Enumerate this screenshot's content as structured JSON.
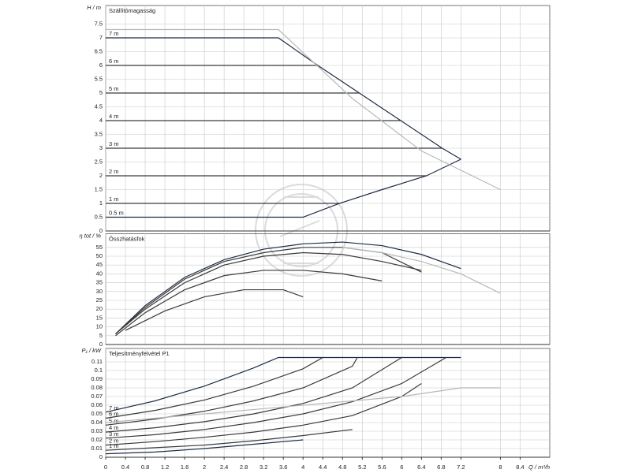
{
  "chart_data": [
    {
      "type": "line",
      "ylabel": "H / m",
      "title": "Szállítómagasság",
      "xlim": [
        0,
        9
      ],
      "ylim": [
        0,
        8
      ],
      "yticks": [
        0,
        0.5,
        1,
        1.5,
        2,
        2.5,
        3,
        3.5,
        4,
        4.5,
        5,
        5.5,
        6,
        6.5,
        7,
        7.5
      ],
      "grid": true,
      "series": [
        {
          "name": "7 m",
          "color": "#1c2b45",
          "x": [
            0,
            3.5,
            4.3,
            5.14,
            5.98,
            6.82,
            7.2
          ],
          "values": [
            7,
            7,
            6,
            5,
            4,
            3,
            2.6
          ]
        },
        {
          "name": "6 m",
          "color": "#3a3a3a",
          "x": [
            0,
            4.3
          ],
          "values": [
            6,
            6
          ]
        },
        {
          "name": "5 m",
          "color": "#3a3a3a",
          "x": [
            0,
            5.14
          ],
          "values": [
            5,
            5
          ]
        },
        {
          "name": "4 m",
          "color": "#3a3a3a",
          "x": [
            0,
            5.98
          ],
          "values": [
            4,
            4
          ]
        },
        {
          "name": "3 m",
          "color": "#3a3a3a",
          "x": [
            0,
            6.82
          ],
          "values": [
            3,
            3
          ]
        },
        {
          "name": "2 m",
          "color": "#3a3a3a",
          "x": [
            0,
            6.5
          ],
          "values": [
            2,
            2
          ]
        },
        {
          "name": "1 m",
          "color": "#3a3a3a",
          "x": [
            0,
            4.74
          ],
          "values": [
            1,
            1
          ]
        },
        {
          "name": "0.5 m",
          "color": "#1c2b45",
          "x": [
            0,
            4,
            4.74,
            5.6,
            6.5,
            7.2
          ],
          "values": [
            0.5,
            0.5,
            1,
            1.5,
            2,
            2.6
          ]
        },
        {
          "color": "#b8b8b8",
          "x": [
            0,
            3.5,
            5,
            6.4,
            8
          ],
          "values": [
            7.3,
            7.3,
            4.8,
            2.9,
            1.5
          ]
        }
      ]
    },
    {
      "type": "line",
      "ylabel": "η tot / %",
      "title": "Összhatásfok",
      "xlim": [
        0,
        9
      ],
      "ylim": [
        0,
        60
      ],
      "yticks": [
        0,
        5,
        10,
        15,
        20,
        25,
        30,
        35,
        40,
        45,
        50,
        55
      ],
      "grid": true,
      "series": [
        {
          "color": "#1c2b45",
          "x": [
            0.2,
            0.8,
            1.6,
            2.4,
            3.2,
            4,
            4.8,
            5.6,
            6.4,
            7.2
          ],
          "values": [
            6,
            22,
            38,
            48,
            54,
            57,
            58,
            56,
            51,
            43
          ]
        },
        {
          "color": "#3a3a3a",
          "x": [
            0.2,
            0.8,
            1.6,
            2.4,
            3.2,
            4,
            4.8,
            5.6,
            6.4
          ],
          "values": [
            6,
            21,
            37,
            47,
            52,
            55,
            55,
            52,
            41
          ]
        },
        {
          "color": "#3a3a3a",
          "x": [
            0.2,
            0.8,
            1.6,
            2.4,
            3.2,
            4,
            4.8,
            5.6,
            6.4
          ],
          "values": [
            6,
            20,
            35,
            45,
            50,
            52,
            51,
            47,
            42
          ]
        },
        {
          "color": "#3a3a3a",
          "x": [
            0.2,
            0.8,
            1.6,
            2.4,
            3.2,
            4,
            4.8,
            5.6
          ],
          "values": [
            5,
            18,
            31,
            39,
            42,
            42,
            40,
            36
          ]
        },
        {
          "color": "#3a3a3a",
          "x": [
            0.4,
            1.2,
            2,
            2.8,
            3.6,
            4
          ],
          "values": [
            8,
            19,
            27,
            31,
            31,
            27
          ]
        },
        {
          "color": "#b8b8b8",
          "x": [
            4.8,
            5.6,
            6.4,
            7.2,
            8
          ],
          "values": [
            55,
            52,
            47,
            40,
            29
          ]
        }
      ]
    },
    {
      "type": "line",
      "ylabel": "P₁ / kW",
      "title": "Teljesítményfelvétel P1",
      "xlim": [
        0,
        9
      ],
      "ylim": [
        0,
        0.12
      ],
      "yticks": [
        0,
        0.01,
        0.02,
        0.03,
        0.04,
        0.05,
        0.06,
        0.07,
        0.08,
        0.09,
        0.1,
        0.11
      ],
      "grid": true,
      "xlabel": "Q / m³/h",
      "xticks": [
        0,
        0.4,
        0.8,
        1.2,
        1.6,
        2,
        2.4,
        2.8,
        3.2,
        3.6,
        4,
        4.4,
        4.8,
        5.2,
        5.6,
        6,
        6.4,
        6.8,
        7.2,
        8,
        8.4
      ],
      "series": [
        {
          "name": "7 m",
          "color": "#1c2b45",
          "x": [
            0,
            1,
            2,
            3,
            3.5,
            7.2
          ],
          "values": [
            0.052,
            0.065,
            0.082,
            0.103,
            0.115,
            0.115
          ]
        },
        {
          "name": "6 m",
          "color": "#3a3a3a",
          "x": [
            0,
            1,
            2,
            3,
            4,
            4.4
          ],
          "values": [
            0.045,
            0.054,
            0.066,
            0.082,
            0.102,
            0.115
          ]
        },
        {
          "name": "5 m",
          "color": "#3a3a3a",
          "x": [
            0,
            1,
            2,
            3,
            4,
            5,
            5.1
          ],
          "values": [
            0.037,
            0.044,
            0.053,
            0.065,
            0.08,
            0.105,
            0.115
          ]
        },
        {
          "name": "4 m",
          "color": "#3a3a3a",
          "x": [
            0,
            1,
            2,
            3,
            4,
            5,
            6
          ],
          "values": [
            0.029,
            0.034,
            0.041,
            0.05,
            0.062,
            0.08,
            0.115
          ]
        },
        {
          "name": "3 m",
          "color": "#3a3a3a",
          "x": [
            0,
            1,
            2,
            3,
            4,
            5,
            6,
            6.9
          ],
          "values": [
            0.022,
            0.026,
            0.032,
            0.04,
            0.05,
            0.064,
            0.085,
            0.115
          ]
        },
        {
          "name": "2 m",
          "color": "#3a3a3a",
          "x": [
            0,
            1,
            2,
            3,
            4,
            5,
            6,
            6.4
          ],
          "values": [
            0.014,
            0.018,
            0.023,
            0.029,
            0.037,
            0.048,
            0.07,
            0.085
          ]
        },
        {
          "name": "1 m",
          "color": "#3a3a3a",
          "x": [
            0,
            1,
            2,
            3,
            4,
            5
          ],
          "values": [
            0.008,
            0.011,
            0.014,
            0.019,
            0.025,
            0.032
          ]
        },
        {
          "color": "#1c2b45",
          "x": [
            0,
            1,
            2,
            3,
            4
          ],
          "values": [
            0.004,
            0.006,
            0.01,
            0.015,
            0.02
          ]
        },
        {
          "color": "#b8b8b8",
          "x": [
            0,
            2,
            4,
            6,
            7.2,
            8
          ],
          "values": [
            0.04,
            0.05,
            0.06,
            0.07,
            0.08,
            0.08
          ]
        }
      ]
    }
  ]
}
